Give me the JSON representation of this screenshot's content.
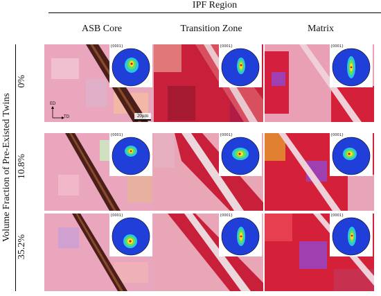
{
  "header": {
    "title": "IPF Region"
  },
  "columns": [
    {
      "label": "ASB Core"
    },
    {
      "label": "Transition Zone"
    },
    {
      "label": "Matrix"
    }
  ],
  "rows": [
    {
      "label": "0%"
    },
    {
      "label": "10.8%"
    },
    {
      "label": "35.2%"
    }
  ],
  "y_axis_title": "Volume Fraction of Pre-Existed Twins",
  "pole_figure_label": "{0001}",
  "axes": {
    "rd": "ED",
    "td": "TD"
  },
  "scale_bar": "20μm",
  "colors": {
    "map_pink": "#e9a3b8",
    "map_red": "#d2203e",
    "band_dark": "#4a1f1a",
    "pf_outer": "#1f3fd8"
  }
}
